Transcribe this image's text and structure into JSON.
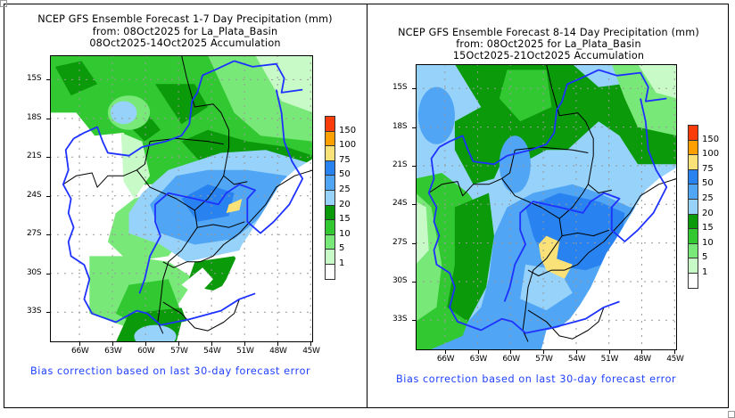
{
  "colors": {
    "c_1": "#ffffff",
    "c_5": "#c8fac8",
    "c_10": "#78e878",
    "c_15": "#32c832",
    "c_20": "#0a9a0a",
    "c_25": "#96d2fa",
    "c_50": "#50a5f5",
    "c_75": "#2882f0",
    "c_100": "#fae178",
    "c_150": "#ffa000",
    "c_top": "#fa3c0a",
    "river": "#1e32ff",
    "border": "#000000",
    "footer_text": "#1f3fff"
  },
  "panels": [
    {
      "id": "week1",
      "title_lines": [
        "NCEP GFS Ensemble Forecast 1-7 Day Precipitation (mm)",
        "from: 08Oct2025   for La_Plata_Basin",
        "08Oct2025-14Oct2025 Accumulation"
      ],
      "footer": "Bias correction based on last 30-day forecast error"
    },
    {
      "id": "week2",
      "title_lines": [
        "NCEP GFS Ensemble Forecast 8-14 Day Precipitation (mm)",
        "from: 08Oct2025   for La_Plata_Basin",
        "15Oct2025-21Oct2025 Accumulation"
      ],
      "footer": "Bias correction based on last 30-day forecast error"
    }
  ],
  "axes": {
    "lat_labels": [
      "15S",
      "18S",
      "21S",
      "24S",
      "27S",
      "30S",
      "33S"
    ],
    "lon_labels": [
      "66W",
      "63W",
      "60W",
      "57W",
      "54W",
      "51W",
      "48W",
      "45W"
    ],
    "lat_range": [
      -35.5,
      -13.0
    ],
    "lon_range": [
      -67.0,
      -44.2
    ]
  },
  "legend": {
    "unit": "mm",
    "levels": [
      "1",
      "5",
      "10",
      "15",
      "20",
      "25",
      "50",
      "75",
      "100",
      "150"
    ],
    "colors": [
      "#ffffff",
      "#c8fac8",
      "#78e878",
      "#32c832",
      "#0a9a0a",
      "#96d2fa",
      "#50a5f5",
      "#2882f0",
      "#fae178",
      "#ffa000",
      "#fa3c0a"
    ]
  }
}
